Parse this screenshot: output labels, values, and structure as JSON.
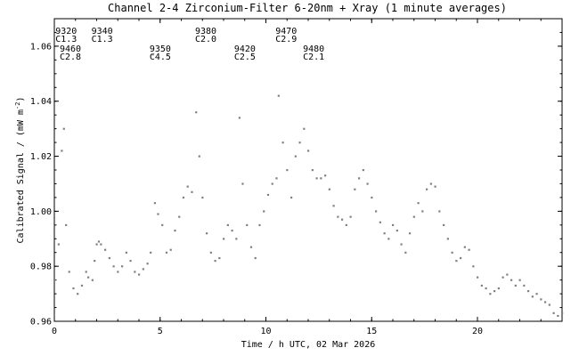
{
  "chart_data": {
    "type": "scatter",
    "title": "Channel 2-4   Zirconium-Filter   6-20nm + Xray   (1 minute averages)",
    "xlabel": "Time / h UTC, 02 Mar 2026",
    "ylabel": "Calibrated Signal / (mW m",
    "ylabel_exponent": "-2",
    "ylabel_suffix": ")",
    "xlim": [
      0,
      24
    ],
    "ylim": [
      0.96,
      1.07
    ],
    "xticks": [
      0,
      5,
      10,
      15,
      20
    ],
    "xtick_labels": [
      "0",
      "5",
      "10",
      "15",
      "20"
    ],
    "yticks": [
      0.96,
      0.98,
      1.0,
      1.02,
      1.04,
      1.06
    ],
    "ytick_labels": [
      "0.96",
      "0.98",
      "1.00",
      "1.02",
      "1.04",
      "1.06"
    ],
    "grid": false,
    "marker_color": "#808080",
    "flare_labels": [
      {
        "x": 0.05,
        "row": 0,
        "number": "9320",
        "class": "C1.3"
      },
      {
        "x": 1.75,
        "row": 0,
        "number": "9340",
        "class": "C1.3"
      },
      {
        "x": 6.65,
        "row": 0,
        "number": "9380",
        "class": "C2.0"
      },
      {
        "x": 10.45,
        "row": 0,
        "number": "9470",
        "class": "C2.9"
      },
      {
        "x": 0.25,
        "row": 1,
        "number": "9460",
        "class": "C2.8"
      },
      {
        "x": 4.5,
        "row": 1,
        "number": "9350",
        "class": "C4.5"
      },
      {
        "x": 8.5,
        "row": 1,
        "number": "9420",
        "class": "C2.5"
      },
      {
        "x": 11.75,
        "row": 1,
        "number": "9480",
        "class": "C2.1"
      }
    ],
    "series": [
      {
        "x": [
          0.0,
          0.2,
          0.35,
          0.45,
          0.55,
          0.7,
          0.9,
          1.1,
          1.3,
          1.5,
          1.6,
          1.8,
          1.9,
          2.0,
          2.1,
          2.2,
          2.4,
          2.6,
          2.8,
          3.0,
          3.2,
          3.4,
          3.6,
          3.8,
          4.0,
          4.2,
          4.4,
          4.55,
          4.65,
          4.75,
          4.9,
          5.1,
          5.3,
          5.5,
          5.7,
          5.9,
          6.1,
          6.3,
          6.5,
          6.7,
          6.85,
          7.0,
          7.2,
          7.4,
          7.6,
          7.8,
          8.0,
          8.2,
          8.4,
          8.6,
          8.75,
          8.9,
          9.1,
          9.3,
          9.5,
          9.7,
          9.9,
          10.1,
          10.3,
          10.5,
          10.6,
          10.8,
          11.0,
          11.2,
          11.4,
          11.6,
          11.8,
          12.0,
          12.2,
          12.4,
          12.6,
          12.8,
          13.0,
          13.2,
          13.4,
          13.6,
          13.8,
          14.0,
          14.2,
          14.4,
          14.6,
          14.8,
          15.0,
          15.2,
          15.4,
          15.6,
          15.8,
          16.0,
          16.2,
          16.4,
          16.6,
          16.8,
          17.0,
          17.2,
          17.4,
          17.6,
          17.8,
          18.0,
          18.2,
          18.4,
          18.6,
          18.8,
          19.0,
          19.2,
          19.4,
          19.6,
          19.8,
          20.0,
          20.2,
          20.4,
          20.6,
          20.8,
          21.0,
          21.2,
          21.4,
          21.6,
          21.8,
          22.0,
          22.2,
          22.4,
          22.6,
          22.8,
          23.0,
          23.2,
          23.4,
          23.6,
          23.8,
          24.0
        ],
        "values": [
          0.975,
          0.988,
          1.022,
          1.03,
          0.995,
          0.978,
          0.972,
          0.97,
          0.973,
          0.978,
          0.976,
          0.975,
          0.982,
          0.988,
          0.989,
          0.988,
          0.986,
          0.983,
          0.98,
          0.978,
          0.98,
          0.985,
          0.982,
          0.978,
          0.977,
          0.979,
          0.981,
          0.985,
          1.057,
          1.003,
          0.999,
          0.995,
          0.985,
          0.986,
          0.993,
          0.998,
          1.005,
          1.009,
          1.007,
          1.036,
          1.02,
          1.005,
          0.992,
          0.985,
          0.982,
          0.983,
          0.99,
          0.995,
          0.993,
          0.99,
          1.034,
          1.01,
          0.995,
          0.987,
          0.983,
          0.995,
          1.0,
          1.006,
          1.01,
          1.012,
          1.042,
          1.025,
          1.015,
          1.005,
          1.02,
          1.025,
          1.03,
          1.022,
          1.015,
          1.012,
          1.012,
          1.013,
          1.008,
          1.002,
          0.998,
          0.997,
          0.995,
          0.998,
          1.008,
          1.012,
          1.015,
          1.01,
          1.005,
          1.0,
          0.996,
          0.992,
          0.99,
          0.995,
          0.993,
          0.988,
          0.985,
          0.992,
          0.998,
          1.003,
          1.0,
          1.008,
          1.01,
          1.009,
          1.0,
          0.995,
          0.99,
          0.985,
          0.982,
          0.983,
          0.987,
          0.986,
          0.98,
          0.976,
          0.973,
          0.972,
          0.97,
          0.971,
          0.972,
          0.976,
          0.977,
          0.975,
          0.973,
          0.975,
          0.973,
          0.971,
          0.969,
          0.97,
          0.968,
          0.967,
          0.966,
          0.963,
          0.962,
          0.963
        ]
      }
    ]
  }
}
